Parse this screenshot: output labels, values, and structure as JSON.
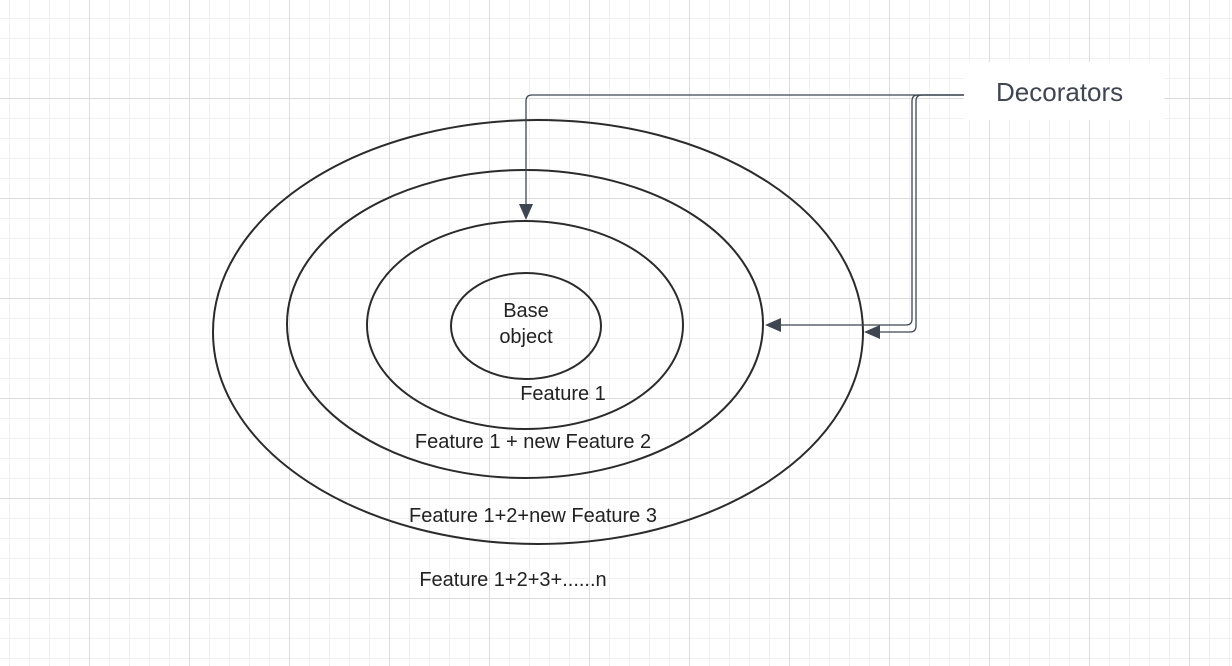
{
  "diagram": {
    "decorators_label": "Decorators",
    "base_label": "Base object",
    "rings": [
      {
        "label": "Feature 1"
      },
      {
        "label": "Feature 1 + new Feature 2"
      },
      {
        "label": "Feature 1+2+new Feature 3"
      },
      {
        "label": "Feature 1+2+3+......n"
      }
    ]
  },
  "colors": {
    "ring_stroke": "#2b2b2b",
    "connector": "#3f4652",
    "grid_major": "#dcdcdc",
    "grid_minor": "#f1f1f1",
    "background": "#ffffff"
  }
}
